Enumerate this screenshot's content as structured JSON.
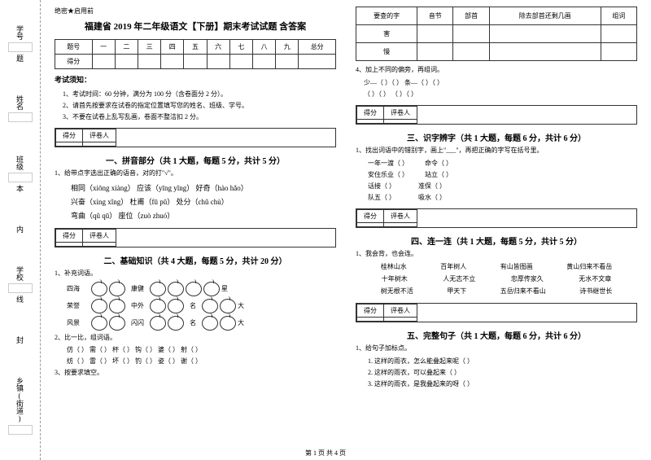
{
  "side": {
    "labels": [
      "学号",
      "姓名",
      "班级",
      "学校",
      "乡镇(街道)"
    ],
    "fold_marks": [
      "题",
      "本",
      "内",
      "线",
      "封"
    ]
  },
  "header_mark": "绝密★启用前",
  "title": "福建省 2019 年二年级语文【下册】期末考试试题 含答案",
  "score_table": {
    "headers": [
      "题号",
      "一",
      "二",
      "三",
      "四",
      "五",
      "六",
      "七",
      "八",
      "九",
      "总分"
    ],
    "row2": "得分"
  },
  "notice": {
    "title": "考试须知：",
    "items": [
      "1、考试时间：60 分钟，满分为 100 分（含卷面分 2 分）。",
      "2、请首先按要求在试卷的指定位置填写您的姓名、班级、学号。",
      "3、不要在试卷上乱写乱画，卷面不整洁扣 2 分。"
    ]
  },
  "score_box": {
    "c1": "得分",
    "c2": "评卷人"
  },
  "s1": {
    "title": "一、拼音部分（共 1 大题，每题 5 分，共计 5 分）",
    "q1": "1、给带点字选出正确的语音，对的打\"√\"。",
    "p1": "相同（xiōng  xiàng）    应该（yīng yǐng）    好奇（hào  hǎo）",
    "p2": "兴奋（xìng  xǐng）     杜甫（fū  pǔ）        处分（chǔ   chù）",
    "p3": "弯曲（qǔ   qū）        座位（zuò  zhuó）"
  },
  "s2": {
    "title": "二、基础知识（共 4 大题，每题 5 分，共计 20 分）",
    "q1": "1、补充词语。",
    "labels": [
      "四海",
      "康健",
      "星",
      "荣誉",
      "中外",
      "名",
      "大",
      "风景",
      "闪闪",
      "名",
      "大"
    ],
    "q2": "2、比一比，组词语。",
    "line1": "仿（    ）    需（    ）    杯（    ）    钩（    ）    婆（    ）    射（    ）",
    "line2": "纺（    ）    雷（    ）    坏（    ）    钓（    ）    姿（    ）    谢（    ）",
    "q3": "3、按要求填空。"
  },
  "lookup": {
    "headers": [
      "要查的字",
      "音节",
      "部首",
      "除去部首还剩几画",
      "组词"
    ],
    "rows": [
      "害",
      "慢"
    ]
  },
  "s2q4": {
    "text": "4、加上不同的偏旁，再组词。",
    "line1": "少—（      ）（      ）        条—（      ）（      ）",
    "line2": "      （      ）（      ）              （      ）（      ）"
  },
  "s3": {
    "title": "三、识字辨字（共 1 大题，每题 6 分，共计 6 分）",
    "q1": "1、找出词语中的错别字，画上\"___\"，再把正确的字写在括号里。",
    "items": [
      {
        "l": "一年一渡（    ）",
        "r": "命令（    ）"
      },
      {
        "l": "安住乐业（    ）",
        "r": "站立（    ）"
      },
      {
        "l": "话接（    ）",
        "r": "准保（    ）"
      },
      {
        "l": "队五（    ）",
        "r": "吸水（    ）"
      }
    ]
  },
  "s4": {
    "title": "四、连一连（共 1 大题，每题 5 分，共计 5 分）",
    "q1": "1、我会背，也会连。",
    "rows": [
      [
        "桂林山水",
        "百年树人",
        "有山皆图画",
        "黄山归来不看岳"
      ],
      [
        "十年树木",
        "人无志不立",
        "忠厚传家久",
        "无水不文章"
      ],
      [
        "树无根不活",
        "甲天下",
        "五岳归来不看山",
        "诗书继世长"
      ]
    ]
  },
  "s5": {
    "title": "五、完整句子（共 1 大题，每题 6 分，共计 6 分）",
    "q1": "1、给句子加标点。",
    "items": [
      "1. 这样的雨衣，怎么能叠起来呢（    ）",
      "2. 这样的雨衣，可以叠起来（    ）",
      "3. 这样的雨衣，是我叠起来的呀（    ）"
    ]
  },
  "page": "第 1 页 共 4 页"
}
